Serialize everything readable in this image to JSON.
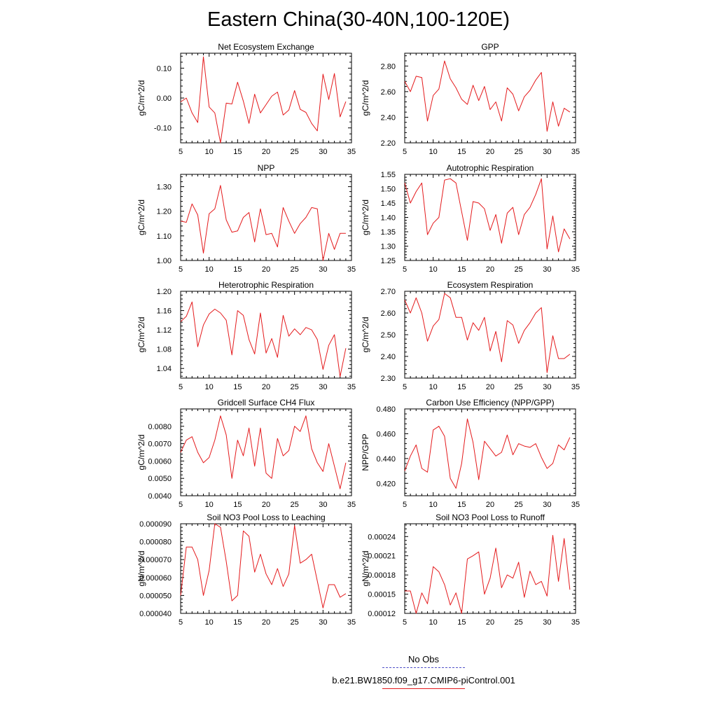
{
  "title": "Eastern China(30-40N,100-120E)",
  "colors": {
    "model_line": "#e41a1c",
    "obs_line": "#5050c8",
    "axis": "#000000"
  },
  "legend": [
    {
      "label": "No Obs",
      "style": "dashed",
      "color": "#5050c8"
    },
    {
      "label": "b.e21.BW1850.f09_g17.CMIP6-piControl.001",
      "style": "solid",
      "color": "#e41a1c"
    }
  ],
  "chart_data": [
    {
      "type": "line",
      "title": "Net Ecosystem Exchange",
      "ylabel": "gC/m^2/d",
      "xlim": [
        5,
        35
      ],
      "ylim": [
        -0.15,
        0.15
      ],
      "xticks": [
        5,
        10,
        15,
        20,
        25,
        30,
        35
      ],
      "xtick_labels": [
        "5",
        "10",
        "15",
        "20",
        "25",
        "30",
        "35"
      ],
      "yticks": [
        -0.1,
        0.0,
        0.1
      ],
      "ytick_labels": [
        "-0.10",
        "0.00",
        "0.10"
      ],
      "x": [
        5,
        6,
        7,
        8,
        9,
        10,
        11,
        12,
        13,
        14,
        15,
        16,
        17,
        18,
        19,
        20,
        21,
        22,
        23,
        24,
        25,
        26,
        27,
        28,
        29,
        30,
        31,
        32,
        33,
        34
      ],
      "series": [
        {
          "name": "b.e21.BW1850.f09_g17.CMIP6-piControl.001",
          "values": [
            -0.013,
            0.0,
            -0.05,
            -0.082,
            0.138,
            -0.03,
            -0.05,
            -0.15,
            -0.017,
            -0.02,
            0.053,
            -0.01,
            -0.085,
            0.013,
            -0.05,
            -0.022,
            0.006,
            0.02,
            -0.057,
            -0.04,
            0.025,
            -0.038,
            -0.048,
            -0.085,
            -0.11,
            0.08,
            -0.005,
            0.082,
            -0.063,
            -0.012
          ]
        }
      ]
    },
    {
      "type": "line",
      "title": "GPP",
      "ylabel": "gC/m^2/d",
      "xlim": [
        5,
        35
      ],
      "ylim": [
        2.2,
        2.9
      ],
      "xticks": [
        5,
        10,
        15,
        20,
        25,
        30,
        35
      ],
      "xtick_labels": [
        "5",
        "10",
        "15",
        "20",
        "25",
        "30",
        "35"
      ],
      "yticks": [
        2.2,
        2.4,
        2.6,
        2.8
      ],
      "ytick_labels": [
        "2.20",
        "2.40",
        "2.60",
        "2.80"
      ],
      "x": [
        5,
        6,
        7,
        8,
        9,
        10,
        11,
        12,
        13,
        14,
        15,
        16,
        17,
        18,
        19,
        20,
        21,
        22,
        23,
        24,
        25,
        26,
        27,
        28,
        29,
        30,
        31,
        32,
        33,
        34
      ],
      "series": [
        {
          "name": "b.e21.BW1850.f09_g17.CMIP6-piControl.001",
          "values": [
            2.68,
            2.6,
            2.72,
            2.71,
            2.37,
            2.57,
            2.62,
            2.84,
            2.7,
            2.63,
            2.54,
            2.5,
            2.65,
            2.53,
            2.64,
            2.46,
            2.52,
            2.37,
            2.63,
            2.58,
            2.45,
            2.56,
            2.61,
            2.69,
            2.75,
            2.29,
            2.52,
            2.33,
            2.47,
            2.44
          ]
        }
      ]
    },
    {
      "type": "line",
      "title": "NPP",
      "ylabel": "gC/m^2/d",
      "xlim": [
        5,
        35
      ],
      "ylim": [
        1.0,
        1.35
      ],
      "xticks": [
        5,
        10,
        15,
        20,
        25,
        30,
        35
      ],
      "xtick_labels": [
        "5",
        "10",
        "15",
        "20",
        "25",
        "30",
        "35"
      ],
      "yticks": [
        1.0,
        1.1,
        1.2,
        1.3
      ],
      "ytick_labels": [
        "1.00",
        "1.10",
        "1.20",
        "1.30"
      ],
      "x": [
        5,
        6,
        7,
        8,
        9,
        10,
        11,
        12,
        13,
        14,
        15,
        16,
        17,
        18,
        19,
        20,
        21,
        22,
        23,
        24,
        25,
        26,
        27,
        28,
        29,
        30,
        31,
        32,
        33,
        34
      ],
      "series": [
        {
          "name": "b.e21.BW1850.f09_g17.CMIP6-piControl.001",
          "values": [
            1.16,
            1.155,
            1.23,
            1.185,
            1.03,
            1.19,
            1.21,
            1.305,
            1.165,
            1.115,
            1.12,
            1.175,
            1.195,
            1.075,
            1.21,
            1.105,
            1.11,
            1.055,
            1.215,
            1.16,
            1.11,
            1.15,
            1.175,
            1.215,
            1.21,
            1.0,
            1.11,
            1.045,
            1.11,
            1.11
          ]
        }
      ]
    },
    {
      "type": "line",
      "title": "Autotrophic Respiration",
      "ylabel": "gC/m^2/d",
      "xlim": [
        5,
        35
      ],
      "ylim": [
        1.25,
        1.55
      ],
      "xticks": [
        5,
        10,
        15,
        20,
        25,
        30,
        35
      ],
      "xtick_labels": [
        "5",
        "10",
        "15",
        "20",
        "25",
        "30",
        "35"
      ],
      "yticks": [
        1.25,
        1.3,
        1.35,
        1.4,
        1.45,
        1.5,
        1.55
      ],
      "ytick_labels": [
        "1.25",
        "1.30",
        "1.35",
        "1.40",
        "1.45",
        "1.50",
        "1.55"
      ],
      "x": [
        5,
        6,
        7,
        8,
        9,
        10,
        11,
        12,
        13,
        14,
        15,
        16,
        17,
        18,
        19,
        20,
        21,
        22,
        23,
        24,
        25,
        26,
        27,
        28,
        29,
        30,
        31,
        32,
        33,
        34
      ],
      "series": [
        {
          "name": "b.e21.BW1850.f09_g17.CMIP6-piControl.001",
          "values": [
            1.52,
            1.45,
            1.49,
            1.52,
            1.34,
            1.38,
            1.4,
            1.53,
            1.535,
            1.52,
            1.42,
            1.32,
            1.455,
            1.45,
            1.43,
            1.355,
            1.41,
            1.31,
            1.415,
            1.435,
            1.34,
            1.41,
            1.435,
            1.48,
            1.535,
            1.29,
            1.405,
            1.28,
            1.36,
            1.325
          ]
        }
      ]
    },
    {
      "type": "line",
      "title": "Heterotrophic Respiration",
      "ylabel": "gC/m^2/d",
      "xlim": [
        5,
        35
      ],
      "ylim": [
        1.02,
        1.2
      ],
      "xticks": [
        5,
        10,
        15,
        20,
        25,
        30,
        35
      ],
      "xtick_labels": [
        "5",
        "10",
        "15",
        "20",
        "25",
        "30",
        "35"
      ],
      "yticks": [
        1.04,
        1.08,
        1.12,
        1.16,
        1.2
      ],
      "ytick_labels": [
        "1.04",
        "1.08",
        "1.12",
        "1.16",
        "1.20"
      ],
      "x": [
        5,
        6,
        7,
        8,
        9,
        10,
        11,
        12,
        13,
        14,
        15,
        16,
        17,
        18,
        19,
        20,
        21,
        22,
        23,
        24,
        25,
        26,
        27,
        28,
        29,
        30,
        31,
        32,
        33,
        34
      ],
      "series": [
        {
          "name": "b.e21.BW1850.f09_g17.CMIP6-piControl.001",
          "values": [
            1.137,
            1.148,
            1.178,
            1.085,
            1.13,
            1.153,
            1.163,
            1.155,
            1.14,
            1.068,
            1.16,
            1.15,
            1.1,
            1.07,
            1.155,
            1.072,
            1.102,
            1.063,
            1.15,
            1.107,
            1.122,
            1.11,
            1.125,
            1.12,
            1.1,
            1.038,
            1.088,
            1.11,
            1.023,
            1.082
          ]
        }
      ]
    },
    {
      "type": "line",
      "title": "Ecosystem Respiration",
      "ylabel": "gC/m^2/d",
      "xlim": [
        5,
        35
      ],
      "ylim": [
        2.3,
        2.7
      ],
      "xticks": [
        5,
        10,
        15,
        20,
        25,
        30,
        35
      ],
      "xtick_labels": [
        "5",
        "10",
        "15",
        "20",
        "25",
        "30",
        "35"
      ],
      "yticks": [
        2.3,
        2.4,
        2.5,
        2.6,
        2.7
      ],
      "ytick_labels": [
        "2.30",
        "2.40",
        "2.50",
        "2.60",
        "2.70"
      ],
      "x": [
        5,
        6,
        7,
        8,
        9,
        10,
        11,
        12,
        13,
        14,
        15,
        16,
        17,
        18,
        19,
        20,
        21,
        22,
        23,
        24,
        25,
        26,
        27,
        28,
        29,
        30,
        31,
        32,
        33,
        34
      ],
      "series": [
        {
          "name": "b.e21.BW1850.f09_g17.CMIP6-piControl.001",
          "values": [
            2.66,
            2.6,
            2.67,
            2.6,
            2.47,
            2.54,
            2.57,
            2.69,
            2.67,
            2.58,
            2.58,
            2.475,
            2.555,
            2.52,
            2.58,
            2.425,
            2.515,
            2.375,
            2.565,
            2.545,
            2.46,
            2.52,
            2.555,
            2.6,
            2.625,
            2.325,
            2.495,
            2.39,
            2.39,
            2.41
          ]
        }
      ]
    },
    {
      "type": "line",
      "title": "Gridcell Surface CH4 Flux",
      "ylabel": "gC/m^2/d",
      "xlim": [
        5,
        35
      ],
      "ylim": [
        0.004,
        0.009
      ],
      "xticks": [
        5,
        10,
        15,
        20,
        25,
        30,
        35
      ],
      "xtick_labels": [
        "5",
        "10",
        "15",
        "20",
        "25",
        "30",
        "35"
      ],
      "yticks": [
        0.004,
        0.005,
        0.006,
        0.007,
        0.008
      ],
      "ytick_labels": [
        "0.0040",
        "0.0050",
        "0.0060",
        "0.0070",
        "0.0080"
      ],
      "x": [
        5,
        6,
        7,
        8,
        9,
        10,
        11,
        12,
        13,
        14,
        15,
        16,
        17,
        18,
        19,
        20,
        21,
        22,
        23,
        24,
        25,
        26,
        27,
        28,
        29,
        30,
        31,
        32,
        33,
        34
      ],
      "series": [
        {
          "name": "b.e21.BW1850.f09_g17.CMIP6-piControl.001",
          "values": [
            0.0065,
            0.0072,
            0.0074,
            0.0065,
            0.0059,
            0.0062,
            0.0072,
            0.0086,
            0.0075,
            0.005,
            0.0072,
            0.0063,
            0.0079,
            0.0057,
            0.0079,
            0.0053,
            0.005,
            0.0073,
            0.0063,
            0.0066,
            0.008,
            0.0077,
            0.0086,
            0.0067,
            0.0059,
            0.0054,
            0.007,
            0.0057,
            0.0044,
            0.0059
          ]
        }
      ]
    },
    {
      "type": "line",
      "title": "Carbon Use Efficiency (NPP/GPP)",
      "ylabel": "NPP/GPP",
      "xlim": [
        5,
        35
      ],
      "ylim": [
        0.41,
        0.48
      ],
      "xticks": [
        5,
        10,
        15,
        20,
        25,
        30,
        35
      ],
      "xtick_labels": [
        "5",
        "10",
        "15",
        "20",
        "25",
        "30",
        "35"
      ],
      "yticks": [
        0.42,
        0.44,
        0.46,
        0.48
      ],
      "ytick_labels": [
        "0.420",
        "0.440",
        "0.460",
        "0.480"
      ],
      "x": [
        5,
        6,
        7,
        8,
        9,
        10,
        11,
        12,
        13,
        14,
        15,
        16,
        17,
        18,
        19,
        20,
        21,
        22,
        23,
        24,
        25,
        26,
        27,
        28,
        29,
        30,
        31,
        32,
        33,
        34
      ],
      "series": [
        {
          "name": "b.e21.BW1850.f09_g17.CMIP6-piControl.001",
          "values": [
            0.43,
            0.442,
            0.451,
            0.432,
            0.429,
            0.463,
            0.466,
            0.458,
            0.424,
            0.416,
            0.436,
            0.472,
            0.453,
            0.423,
            0.454,
            0.448,
            0.442,
            0.445,
            0.459,
            0.443,
            0.452,
            0.45,
            0.449,
            0.452,
            0.441,
            0.432,
            0.436,
            0.451,
            0.447,
            0.457
          ]
        }
      ]
    },
    {
      "type": "line",
      "title": "Soil NO3 Pool Loss to Leaching",
      "ylabel": "gN/m^2/d",
      "xlim": [
        5,
        35
      ],
      "ylim": [
        4e-05,
        9e-05
      ],
      "xticks": [
        5,
        10,
        15,
        20,
        25,
        30,
        35
      ],
      "xtick_labels": [
        "5",
        "10",
        "15",
        "20",
        "25",
        "30",
        "35"
      ],
      "yticks": [
        4e-05,
        5e-05,
        6e-05,
        7e-05,
        8e-05,
        9e-05
      ],
      "ytick_labels": [
        "0.000040",
        "0.000050",
        "0.000060",
        "0.000070",
        "0.000080",
        "0.000090"
      ],
      "x": [
        5,
        6,
        7,
        8,
        9,
        10,
        11,
        12,
        13,
        14,
        15,
        16,
        17,
        18,
        19,
        20,
        21,
        22,
        23,
        24,
        25,
        26,
        27,
        28,
        29,
        30,
        31,
        32,
        33,
        34
      ],
      "series": [
        {
          "name": "b.e21.BW1850.f09_g17.CMIP6-piControl.001",
          "values": [
            5e-05,
            7.7e-05,
            7.7e-05,
            7e-05,
            5e-05,
            6.4e-05,
            9e-05,
            8.8e-05,
            6.9e-05,
            4.7e-05,
            5e-05,
            8.6e-05,
            8.3e-05,
            6.3e-05,
            7.3e-05,
            6.2e-05,
            5.6e-05,
            6.5e-05,
            5.5e-05,
            6.2e-05,
            8.9e-05,
            6.8e-05,
            7e-05,
            7.3e-05,
            5.8e-05,
            4.3e-05,
            5.6e-05,
            5.6e-05,
            4.9e-05,
            5.1e-05
          ]
        }
      ]
    },
    {
      "type": "line",
      "title": "Soil NO3 Pool Loss to Runoff",
      "ylabel": "gN/m^2/d",
      "xlim": [
        5,
        35
      ],
      "ylim": [
        0.00012,
        0.00026
      ],
      "xticks": [
        5,
        10,
        15,
        20,
        25,
        30,
        35
      ],
      "xtick_labels": [
        "5",
        "10",
        "15",
        "20",
        "25",
        "30",
        "35"
      ],
      "yticks": [
        0.00012,
        0.00015,
        0.00018,
        0.00021,
        0.00024
      ],
      "ytick_labels": [
        "0.00012",
        "0.00015",
        "0.00018",
        "0.00021",
        "0.00024"
      ],
      "x": [
        5,
        6,
        7,
        8,
        9,
        10,
        11,
        12,
        13,
        14,
        15,
        16,
        17,
        18,
        19,
        20,
        21,
        22,
        23,
        24,
        25,
        26,
        27,
        28,
        29,
        30,
        31,
        32,
        33,
        34
      ],
      "series": [
        {
          "name": "b.e21.BW1850.f09_g17.CMIP6-piControl.001",
          "values": [
            0.000155,
            0.000155,
            0.00012,
            0.000152,
            0.000135,
            0.000193,
            0.000185,
            0.000165,
            0.000133,
            0.000152,
            0.00012,
            0.000205,
            0.00021,
            0.000216,
            0.00015,
            0.000175,
            0.000222,
            0.00016,
            0.00018,
            0.000175,
            0.0002,
            0.000145,
            0.000186,
            0.000165,
            0.00017,
            0.000147,
            0.000242,
            0.00017,
            0.000237,
            0.000157
          ]
        }
      ]
    }
  ]
}
